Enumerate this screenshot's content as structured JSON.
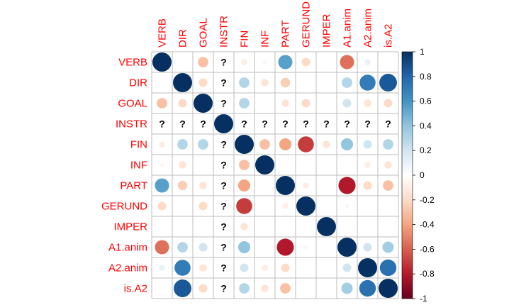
{
  "chart_data": {
    "type": "heatmap",
    "style": "corrplot-circle",
    "variables": [
      "VERB",
      "DIR",
      "GOAL",
      "INSTR",
      "FIN",
      "INF",
      "PART",
      "GERUND",
      "IMPER",
      "A1.anim",
      "A2.anim",
      "is.A2"
    ],
    "matrix": [
      [
        1.0,
        null,
        -0.3,
        "?",
        -0.1,
        -0.05,
        0.55,
        -0.2,
        null,
        -0.55,
        0.1,
        null
      ],
      [
        null,
        1.0,
        -0.2,
        "?",
        0.3,
        -0.15,
        -0.25,
        null,
        null,
        0.3,
        0.7,
        0.85
      ],
      [
        -0.3,
        -0.2,
        1.0,
        "?",
        0.3,
        null,
        -0.15,
        -0.2,
        null,
        0.2,
        -0.15,
        -0.2
      ],
      [
        "?",
        "?",
        "?",
        1.0,
        "?",
        "?",
        "?",
        "?",
        "?",
        "?",
        "?",
        "?"
      ],
      [
        -0.1,
        0.3,
        0.3,
        "?",
        1.0,
        -0.3,
        -0.4,
        -0.7,
        -0.15,
        0.4,
        0.2,
        0.3
      ],
      [
        -0.05,
        -0.15,
        null,
        "?",
        -0.3,
        1.0,
        null,
        null,
        null,
        null,
        -0.1,
        -0.15
      ],
      [
        0.55,
        -0.25,
        -0.15,
        "?",
        -0.4,
        null,
        1.0,
        -0.1,
        null,
        -0.8,
        -0.2,
        -0.3
      ],
      [
        -0.2,
        null,
        -0.2,
        "?",
        -0.7,
        null,
        -0.1,
        1.0,
        null,
        0.05,
        null,
        null
      ],
      [
        null,
        null,
        null,
        "?",
        -0.15,
        null,
        null,
        null,
        1.0,
        null,
        null,
        null
      ],
      [
        -0.55,
        0.3,
        0.2,
        "?",
        0.4,
        null,
        -0.8,
        0.05,
        null,
        1.0,
        0.2,
        0.35
      ],
      [
        0.1,
        0.7,
        -0.15,
        "?",
        0.2,
        -0.1,
        -0.2,
        null,
        null,
        0.2,
        1.0,
        0.75
      ],
      [
        null,
        0.85,
        -0.2,
        "?",
        0.3,
        -0.15,
        -0.3,
        null,
        null,
        0.35,
        0.75,
        1.0
      ]
    ],
    "missing_symbol": "?",
    "colorbar": {
      "ticks": [
        "1",
        "0.8",
        "0.6",
        "0.4",
        "0.2",
        "0",
        "-0.2",
        "-0.4",
        "-0.6",
        "-0.8",
        "-1"
      ],
      "range": [
        -1,
        1
      ],
      "colors": [
        "#67001f",
        "#b2182b",
        "#d6604d",
        "#f4a582",
        "#fddbc7",
        "#ffffff",
        "#d1e5f0",
        "#92c5de",
        "#4393c3",
        "#2166ac",
        "#053061"
      ]
    },
    "label_color": "#ff0000",
    "grid": true
  }
}
